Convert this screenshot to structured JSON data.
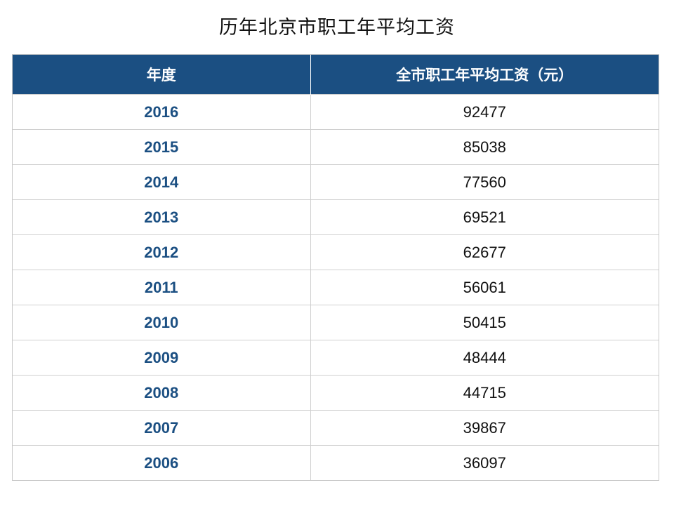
{
  "title": "历年北京市职工年平均工资",
  "chart_data": {
    "type": "table",
    "title": "历年北京市职工年平均工资",
    "columns": [
      "年度",
      "全市职工年平均工资（元）"
    ],
    "rows": [
      {
        "year": "2016",
        "wage": "92477"
      },
      {
        "year": "2015",
        "wage": "85038"
      },
      {
        "year": "2014",
        "wage": "77560"
      },
      {
        "year": "2013",
        "wage": "69521"
      },
      {
        "year": "2012",
        "wage": "62677"
      },
      {
        "year": "2011",
        "wage": "56061"
      },
      {
        "year": "2010",
        "wage": "50415"
      },
      {
        "year": "2009",
        "wage": "48444"
      },
      {
        "year": "2008",
        "wage": "44715"
      },
      {
        "year": "2007",
        "wage": "39867"
      },
      {
        "year": "2006",
        "wage": "36097"
      }
    ]
  },
  "colors": {
    "header_bg": "#1b4f82",
    "header_text": "#ffffff",
    "year_text": "#1b4f82",
    "value_text": "#111111",
    "grid": "#d0d0d0"
  }
}
